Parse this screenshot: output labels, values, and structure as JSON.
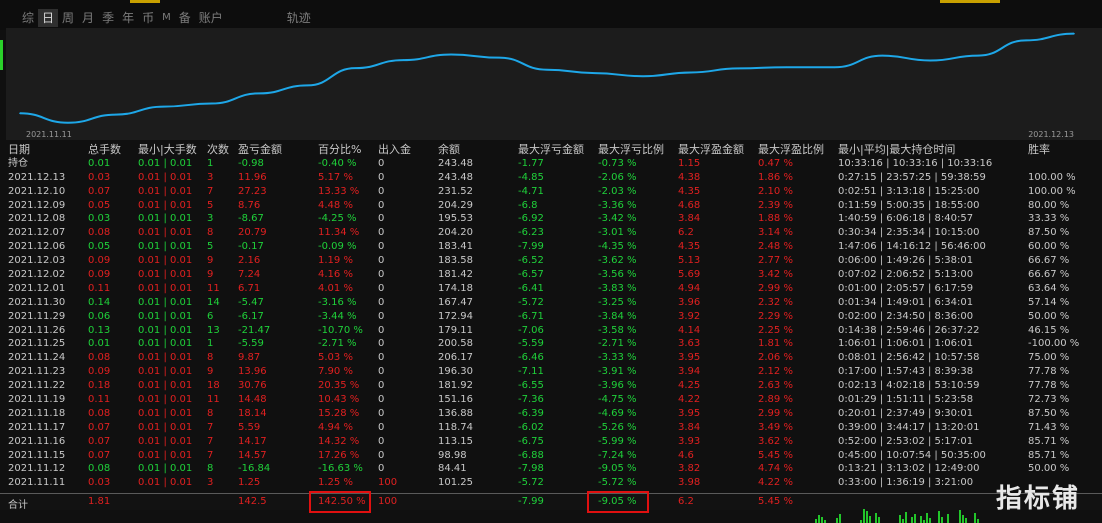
{
  "tabs": [
    "综",
    "日",
    "周",
    "月",
    "季",
    "年",
    "币",
    "M",
    "备",
    "账户",
    "轨迹"
  ],
  "active_tab": "日",
  "chart": {
    "start_date": "2021.11.11",
    "end_date": "2021.12.13",
    "line_color": "#1ea7e8",
    "background": "#1c1c1c"
  },
  "headers": [
    "日期",
    "总手数",
    "最小|大手数",
    "次数",
    "盈亏金额",
    "百分比%",
    "出入金",
    "余额",
    "最大浮亏金额",
    "最大浮亏比例",
    "最大浮盈金额",
    "最大浮盈比例",
    "最小|平均|最大持仓时间",
    "胜率"
  ],
  "hold_row": {
    "label": "持仓",
    "total_lots": "0.01",
    "min_max_lots": "0.01 | 0.01",
    "count": "1",
    "pnl": "-0.98",
    "pct": "-0.40 %",
    "inout": "0",
    "balance": "243.48",
    "max_float_loss": "-1.77",
    "max_float_loss_pct": "-0.73 %",
    "max_float_profit": "1.15",
    "max_float_profit_pct": "0.47 %",
    "hold_time": "10:33:16 | 10:33:16 | 10:33:16",
    "win_rate": ""
  },
  "rows": [
    {
      "date": "2021.12.13",
      "lots": "0.03",
      "mm": "0.01 | 0.01",
      "n": "3",
      "pnl": "11.96",
      "pct": "5.17 %",
      "io": "0",
      "bal": "243.48",
      "mfl": "-4.85",
      "mflp": "-2.06 %",
      "mfp": "4.38",
      "mfpp": "1.86 %",
      "ht": "0:27:15 | 23:57:25 | 59:38:59",
      "wr": "100.00 %"
    },
    {
      "date": "2021.12.10",
      "lots": "0.07",
      "mm": "0.01 | 0.01",
      "n": "7",
      "pnl": "27.23",
      "pct": "13.33 %",
      "io": "0",
      "bal": "231.52",
      "mfl": "-4.71",
      "mflp": "-2.03 %",
      "mfp": "4.35",
      "mfpp": "2.10 %",
      "ht": "0:02:51 | 3:13:18 | 15:25:00",
      "wr": "100.00 %"
    },
    {
      "date": "2021.12.09",
      "lots": "0.05",
      "mm": "0.01 | 0.01",
      "n": "5",
      "pnl": "8.76",
      "pct": "4.48 %",
      "io": "0",
      "bal": "204.29",
      "mfl": "-6.8",
      "mflp": "-3.36 %",
      "mfp": "4.68",
      "mfpp": "2.39 %",
      "ht": "0:11:59 | 5:00:35 | 18:55:00",
      "wr": "80.00 %"
    },
    {
      "date": "2021.12.08",
      "lots": "0.03",
      "mm": "0.01 | 0.01",
      "n": "3",
      "pnl": "-8.67",
      "pct": "-4.25 %",
      "io": "0",
      "bal": "195.53",
      "mfl": "-6.92",
      "mflp": "-3.42 %",
      "mfp": "3.84",
      "mfpp": "1.88 %",
      "ht": "1:40:59 | 6:06:18 | 8:40:57",
      "wr": "33.33 %"
    },
    {
      "date": "2021.12.07",
      "lots": "0.08",
      "mm": "0.01 | 0.01",
      "n": "8",
      "pnl": "20.79",
      "pct": "11.34 %",
      "io": "0",
      "bal": "204.20",
      "mfl": "-6.23",
      "mflp": "-3.01 %",
      "mfp": "6.2",
      "mfpp": "3.14 %",
      "ht": "0:30:34 | 2:35:34 | 10:15:00",
      "wr": "87.50 %"
    },
    {
      "date": "2021.12.06",
      "lots": "0.05",
      "mm": "0.01 | 0.01",
      "n": "5",
      "pnl": "-0.17",
      "pct": "-0.09 %",
      "io": "0",
      "bal": "183.41",
      "mfl": "-7.99",
      "mflp": "-4.35 %",
      "mfp": "4.35",
      "mfpp": "2.48 %",
      "ht": "1:47:06 | 14:16:12 | 56:46:00",
      "wr": "60.00 %"
    },
    {
      "date": "2021.12.03",
      "lots": "0.09",
      "mm": "0.01 | 0.01",
      "n": "9",
      "pnl": "2.16",
      "pct": "1.19 %",
      "io": "0",
      "bal": "183.58",
      "mfl": "-6.52",
      "mflp": "-3.62 %",
      "mfp": "5.13",
      "mfpp": "2.77 %",
      "ht": "0:06:00 | 1:49:26 | 5:38:01",
      "wr": "66.67 %"
    },
    {
      "date": "2021.12.02",
      "lots": "0.09",
      "mm": "0.01 | 0.01",
      "n": "9",
      "pnl": "7.24",
      "pct": "4.16 %",
      "io": "0",
      "bal": "181.42",
      "mfl": "-6.57",
      "mflp": "-3.56 %",
      "mfp": "5.69",
      "mfpp": "3.42 %",
      "ht": "0:07:02 | 2:06:52 | 5:13:00",
      "wr": "66.67 %"
    },
    {
      "date": "2021.12.01",
      "lots": "0.11",
      "mm": "0.01 | 0.01",
      "n": "11",
      "pnl": "6.71",
      "pct": "4.01 %",
      "io": "0",
      "bal": "174.18",
      "mfl": "-6.41",
      "mflp": "-3.83 %",
      "mfp": "4.94",
      "mfpp": "2.99 %",
      "ht": "0:01:00 | 2:05:57 | 6:17:59",
      "wr": "63.64 %"
    },
    {
      "date": "2021.11.30",
      "lots": "0.14",
      "mm": "0.01 | 0.01",
      "n": "14",
      "pnl": "-5.47",
      "pct": "-3.16 %",
      "io": "0",
      "bal": "167.47",
      "mfl": "-5.72",
      "mflp": "-3.25 %",
      "mfp": "3.96",
      "mfpp": "2.32 %",
      "ht": "0:01:34 | 1:49:01 | 6:34:01",
      "wr": "57.14 %"
    },
    {
      "date": "2021.11.29",
      "lots": "0.06",
      "mm": "0.01 | 0.01",
      "n": "6",
      "pnl": "-6.17",
      "pct": "-3.44 %",
      "io": "0",
      "bal": "172.94",
      "mfl": "-6.71",
      "mflp": "-3.84 %",
      "mfp": "3.92",
      "mfpp": "2.29 %",
      "ht": "0:02:00 | 2:34:50 | 8:36:00",
      "wr": "50.00 %"
    },
    {
      "date": "2021.11.26",
      "lots": "0.13",
      "mm": "0.01 | 0.01",
      "n": "13",
      "pnl": "-21.47",
      "pct": "-10.70 %",
      "io": "0",
      "bal": "179.11",
      "mfl": "-7.06",
      "mflp": "-3.58 %",
      "mfp": "4.14",
      "mfpp": "2.25 %",
      "ht": "0:14:38 | 2:59:46 | 26:37:22",
      "wr": "46.15 %"
    },
    {
      "date": "2021.11.25",
      "lots": "0.01",
      "mm": "0.01 | 0.01",
      "n": "1",
      "pnl": "-5.59",
      "pct": "-2.71 %",
      "io": "0",
      "bal": "200.58",
      "mfl": "-5.59",
      "mflp": "-2.71 %",
      "mfp": "3.63",
      "mfpp": "1.81 %",
      "ht": "1:06:01 | 1:06:01 | 1:06:01",
      "wr": "-100.00 %"
    },
    {
      "date": "2021.11.24",
      "lots": "0.08",
      "mm": "0.01 | 0.01",
      "n": "8",
      "pnl": "9.87",
      "pct": "5.03 %",
      "io": "0",
      "bal": "206.17",
      "mfl": "-6.46",
      "mflp": "-3.33 %",
      "mfp": "3.95",
      "mfpp": "2.06 %",
      "ht": "0:08:01 | 2:56:42 | 10:57:58",
      "wr": "75.00 %"
    },
    {
      "date": "2021.11.23",
      "lots": "0.09",
      "mm": "0.01 | 0.01",
      "n": "9",
      "pnl": "13.96",
      "pct": "7.90 %",
      "io": "0",
      "bal": "196.30",
      "mfl": "-7.11",
      "mflp": "-3.91 %",
      "mfp": "3.94",
      "mfpp": "2.12 %",
      "ht": "0:17:00 | 1:57:43 | 8:39:38",
      "wr": "77.78 %"
    },
    {
      "date": "2021.11.22",
      "lots": "0.18",
      "mm": "0.01 | 0.01",
      "n": "18",
      "pnl": "30.76",
      "pct": "20.35 %",
      "io": "0",
      "bal": "181.92",
      "mfl": "-6.55",
      "mflp": "-3.96 %",
      "mfp": "4.25",
      "mfpp": "2.63 %",
      "ht": "0:02:13 | 4:02:18 | 53:10:59",
      "wr": "77.78 %"
    },
    {
      "date": "2021.11.19",
      "lots": "0.11",
      "mm": "0.01 | 0.01",
      "n": "11",
      "pnl": "14.48",
      "pct": "10.43 %",
      "io": "0",
      "bal": "151.16",
      "mfl": "-7.36",
      "mflp": "-4.75 %",
      "mfp": "4.22",
      "mfpp": "2.89 %",
      "ht": "0:01:29 | 1:51:11 | 5:23:58",
      "wr": "72.73 %"
    },
    {
      "date": "2021.11.18",
      "lots": "0.08",
      "mm": "0.01 | 0.01",
      "n": "8",
      "pnl": "18.14",
      "pct": "15.28 %",
      "io": "0",
      "bal": "136.88",
      "mfl": "-6.39",
      "mflp": "-4.69 %",
      "mfp": "3.95",
      "mfpp": "2.99 %",
      "ht": "0:20:01 | 2:37:49 | 9:30:01",
      "wr": "87.50 %"
    },
    {
      "date": "2021.11.17",
      "lots": "0.07",
      "mm": "0.01 | 0.01",
      "n": "7",
      "pnl": "5.59",
      "pct": "4.94 %",
      "io": "0",
      "bal": "118.74",
      "mfl": "-6.02",
      "mflp": "-5.26 %",
      "mfp": "3.84",
      "mfpp": "3.49 %",
      "ht": "0:39:00 | 3:44:17 | 13:20:01",
      "wr": "71.43 %"
    },
    {
      "date": "2021.11.16",
      "lots": "0.07",
      "mm": "0.01 | 0.01",
      "n": "7",
      "pnl": "14.17",
      "pct": "14.32 %",
      "io": "0",
      "bal": "113.15",
      "mfl": "-6.75",
      "mflp": "-5.99 %",
      "mfp": "3.93",
      "mfpp": "3.62 %",
      "ht": "0:52:00 | 2:53:02 | 5:17:01",
      "wr": "85.71 %"
    },
    {
      "date": "2021.11.15",
      "lots": "0.07",
      "mm": "0.01 | 0.01",
      "n": "7",
      "pnl": "14.57",
      "pct": "17.26 %",
      "io": "0",
      "bal": "98.98",
      "mfl": "-6.88",
      "mflp": "-7.24 %",
      "mfp": "4.6",
      "mfpp": "5.45 %",
      "ht": "0:45:00 | 10:07:54 | 50:35:00",
      "wr": "85.71 %"
    },
    {
      "date": "2021.11.12",
      "lots": "0.08",
      "mm": "0.01 | 0.01",
      "n": "8",
      "pnl": "-16.84",
      "pct": "-16.63 %",
      "io": "0",
      "bal": "84.41",
      "mfl": "-7.98",
      "mflp": "-9.05 %",
      "mfp": "3.82",
      "mfpp": "4.74 %",
      "ht": "0:13:21 | 3:13:02 | 12:49:00",
      "wr": "50.00 %"
    },
    {
      "date": "2021.11.11",
      "lots": "0.03",
      "mm": "0.01 | 0.01",
      "n": "3",
      "pnl": "1.25",
      "pct": "1.25 %",
      "io": "100",
      "bal": "101.25",
      "mfl": "-5.72",
      "mflp": "-5.72 %",
      "mfp": "3.98",
      "mfpp": "4.22 %",
      "ht": "0:33:00 | 1:36:19 | 3:21:00",
      "wr": ""
    }
  ],
  "total_row": {
    "label": "合计",
    "lots": "1.81",
    "pnl": "142.5",
    "pct": "142.50 %",
    "io": "100",
    "mfl": "-7.99",
    "mflp": "-9.05 %",
    "mfp": "6.2",
    "mfpp": "5.45 %"
  },
  "watermark": "指标铺",
  "chart_data": {
    "type": "line",
    "x": [
      "2021.11.11",
      "2021.11.12",
      "2021.11.15",
      "2021.11.16",
      "2021.11.17",
      "2021.11.18",
      "2021.11.19",
      "2021.11.22",
      "2021.11.23",
      "2021.11.24",
      "2021.11.25",
      "2021.11.26",
      "2021.11.29",
      "2021.11.30",
      "2021.12.01",
      "2021.12.02",
      "2021.12.03",
      "2021.12.06",
      "2021.12.07",
      "2021.12.08",
      "2021.12.09",
      "2021.12.10",
      "2021.12.13"
    ],
    "values": [
      101.25,
      84.41,
      98.98,
      113.15,
      118.74,
      136.88,
      151.16,
      181.92,
      196.3,
      206.17,
      200.58,
      179.11,
      172.94,
      167.47,
      174.18,
      181.42,
      183.58,
      183.41,
      204.2,
      195.53,
      204.29,
      231.52,
      243.48
    ],
    "title": "",
    "xlabel": "",
    "ylabel": "",
    "ylim": [
      75,
      250
    ],
    "grid": false
  }
}
